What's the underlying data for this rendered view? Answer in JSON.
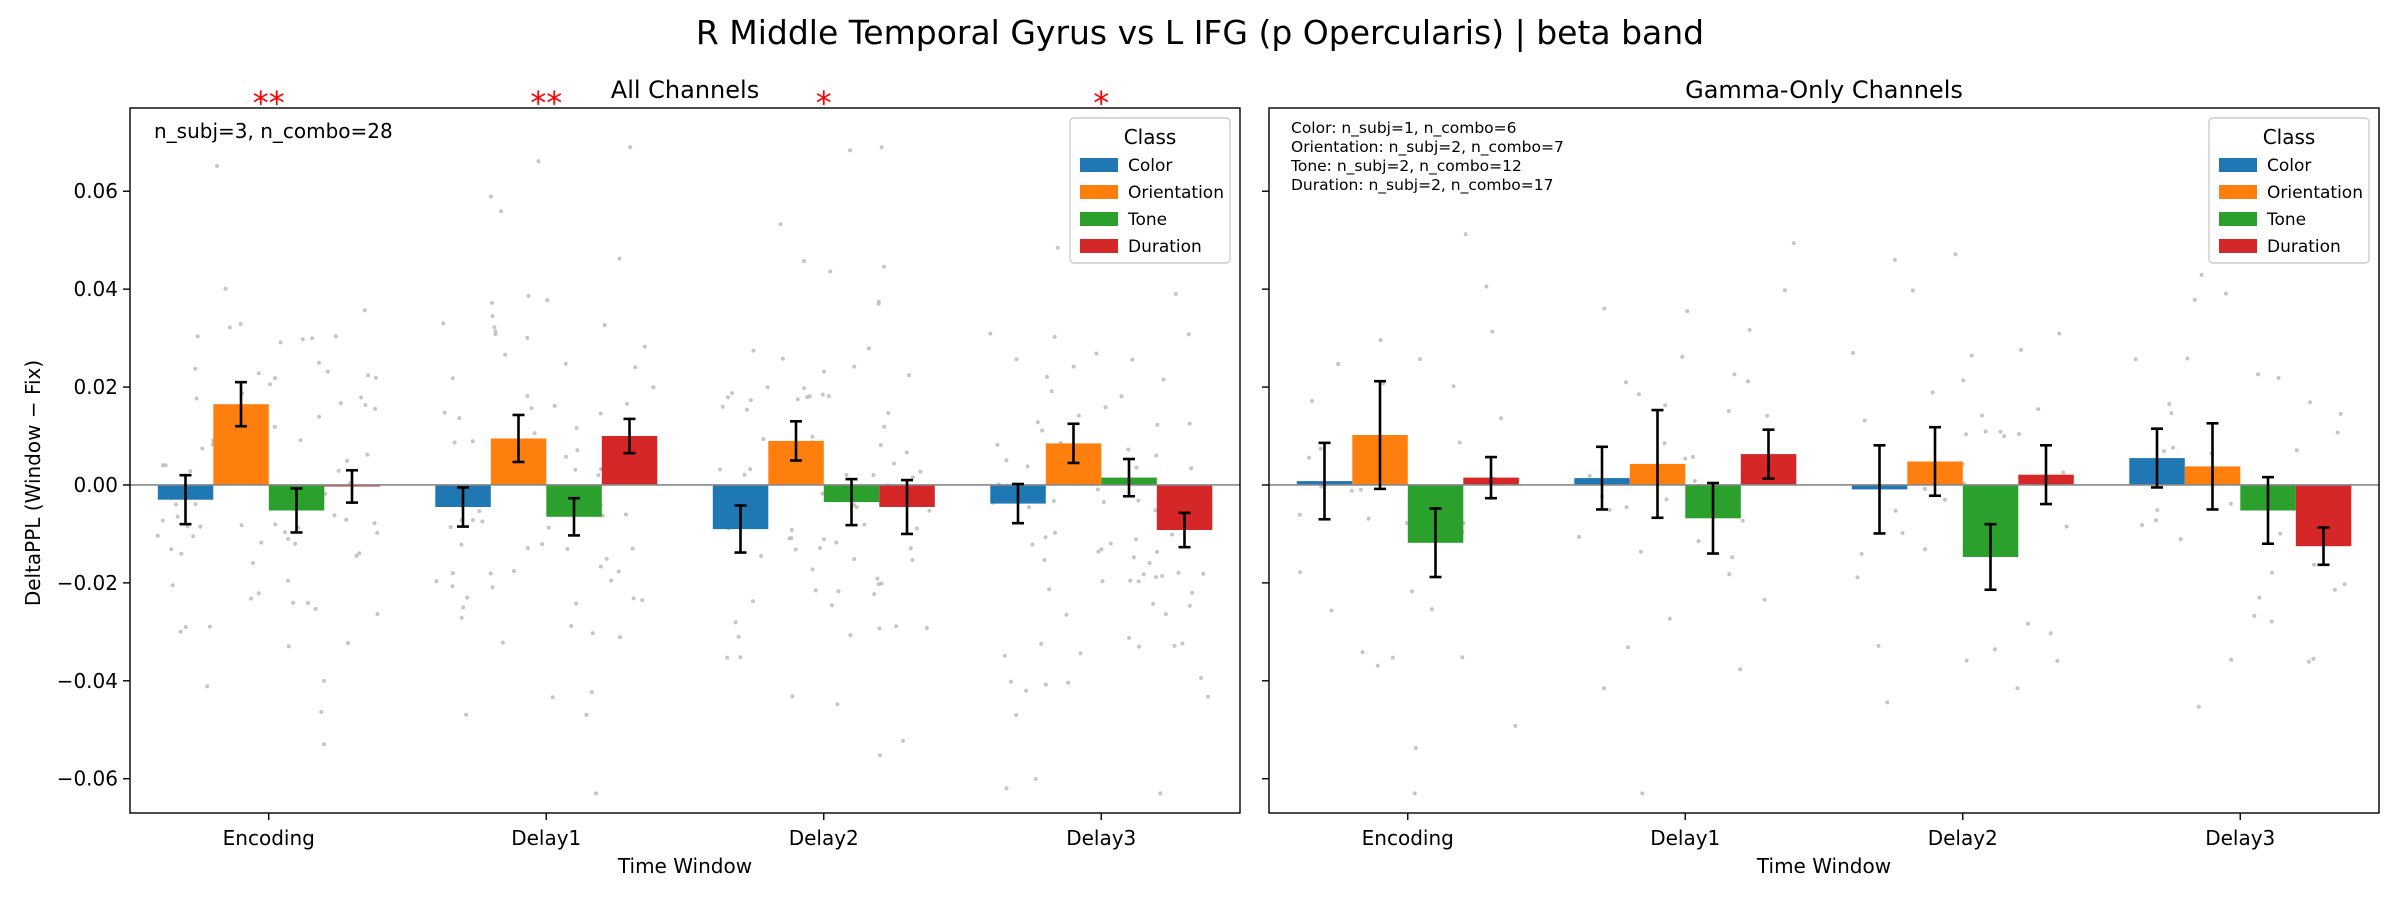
{
  "chart_data": {
    "type": "bar",
    "title": "R Middle Temporal Gyrus vs L IFG (p Opercularis)  |  beta band",
    "ylabel": "DeltaPPL (Window − Fix)",
    "ylim": [
      -0.067,
      0.077
    ],
    "yticks": [
      0.06,
      0.04,
      0.02,
      0.0,
      -0.02,
      -0.04,
      -0.06
    ],
    "ytick_labels": [
      "0.06",
      "0.04",
      "0.02",
      "0.00",
      "−0.02",
      "−0.04",
      "−0.06"
    ],
    "categories": [
      "Encoding",
      "Delay1",
      "Delay2",
      "Delay3"
    ],
    "legend": {
      "title": "Class",
      "position": "top-right",
      "items": [
        {
          "label": "Color",
          "color": "#1f77b4"
        },
        {
          "label": "Orientation",
          "color": "#ff7f0e"
        },
        {
          "label": "Tone",
          "color": "#2ca02c"
        },
        {
          "label": "Duration",
          "color": "#d62728"
        }
      ]
    },
    "panels": [
      {
        "title": "All Channels",
        "xlabel": "Time Window",
        "annotation": [
          "n_subj=3, n_combo=28"
        ],
        "significance": [
          "**",
          "**",
          "*",
          "*"
        ],
        "series": [
          {
            "name": "Color",
            "values": [
              -0.003,
              -0.0045,
              -0.009,
              -0.0038
            ],
            "errors": [
              0.005,
              0.004,
              0.0048,
              0.004
            ]
          },
          {
            "name": "Orientation",
            "values": [
              0.0165,
              0.0095,
              0.009,
              0.0085
            ],
            "errors": [
              0.0045,
              0.0048,
              0.004,
              0.004
            ]
          },
          {
            "name": "Tone",
            "values": [
              -0.0052,
              -0.0065,
              -0.0035,
              0.0015
            ],
            "errors": [
              0.0045,
              0.0038,
              0.0047,
              0.0038
            ]
          },
          {
            "name": "Duration",
            "values": [
              -0.0003,
              0.01,
              -0.0045,
              -0.0092
            ],
            "errors": [
              0.0033,
              0.0035,
              0.0055,
              0.0035
            ]
          }
        ]
      },
      {
        "title": "Gamma-Only Channels",
        "xlabel": "Time Window",
        "annotation": [
          "Color: n_subj=1, n_combo=6",
          "Orientation: n_subj=2, n_combo=7",
          "Tone: n_subj=2, n_combo=12",
          "Duration: n_subj=2, n_combo=17"
        ],
        "significance": [
          "",
          "",
          "",
          ""
        ],
        "series": [
          {
            "name": "Color",
            "values": [
              0.0008,
              0.0014,
              -0.0009,
              0.0055
            ],
            "errors": [
              0.0078,
              0.0064,
              0.009,
              0.006
            ]
          },
          {
            "name": "Orientation",
            "values": [
              0.0102,
              0.0043,
              0.0048,
              0.0038
            ],
            "errors": [
              0.011,
              0.011,
              0.007,
              0.0088
            ]
          },
          {
            "name": "Tone",
            "values": [
              -0.0118,
              -0.0068,
              -0.0147,
              -0.0052
            ],
            "errors": [
              0.007,
              0.0072,
              0.0067,
              0.0068
            ]
          },
          {
            "name": "Duration",
            "values": [
              0.0015,
              0.0063,
              0.0021,
              -0.0125
            ],
            "errors": [
              0.0042,
              0.005,
              0.006,
              0.0038
            ]
          }
        ]
      }
    ],
    "scatter": {
      "color": "#bbbbbb",
      "note": "individual combo points (grey jitter)"
    }
  }
}
